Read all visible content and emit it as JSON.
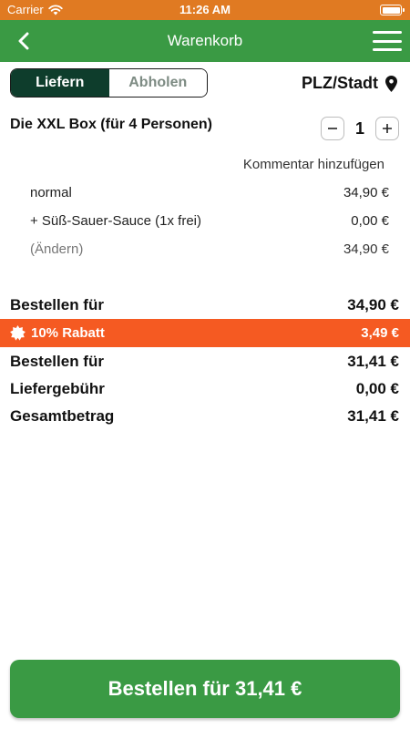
{
  "status_bar": {
    "carrier": "Carrier",
    "time": "11:26 AM"
  },
  "nav": {
    "title": "Warenkorb"
  },
  "delivery": {
    "deliver_label": "Liefern",
    "pickup_label": "Abholen",
    "location_label": "PLZ/Stadt"
  },
  "item": {
    "name": "Die XXL Box (für 4 Personen)",
    "quantity": "1",
    "comment_label": "Kommentar hinzufügen",
    "lines": [
      {
        "label": "normal",
        "price": "34,90 €"
      },
      {
        "label": "+ Süß-Sauer-Sauce (1x frei)",
        "price": "0,00 €"
      },
      {
        "label": "(Ändern)",
        "price": "34,90 €"
      }
    ]
  },
  "totals": {
    "order_for_label": "Bestellen für",
    "order_for_value": "34,90 €",
    "discount_label": "10% Rabatt",
    "discount_value": "3,49 €",
    "order_for_discounted_label": "Bestellen für",
    "order_for_discounted_value": "31,41 €",
    "delivery_fee_label": "Liefergebühr",
    "delivery_fee_value": "0,00 €",
    "grand_total_label": "Gesamtbetrag",
    "grand_total_value": "31,41 €"
  },
  "order_button": {
    "label": "Bestellen für 31,41 €"
  },
  "colors": {
    "primary_green": "#3a9a44",
    "dark_green": "#0e3d2c",
    "discount_orange": "#f55a22",
    "status_orange": "#e07a22"
  },
  "icons": {
    "wifi": "wifi-icon",
    "battery": "battery-icon",
    "back": "chevron-left-icon",
    "menu": "hamburger-menu-icon",
    "location": "location-pin-icon",
    "discount": "badge-icon"
  }
}
